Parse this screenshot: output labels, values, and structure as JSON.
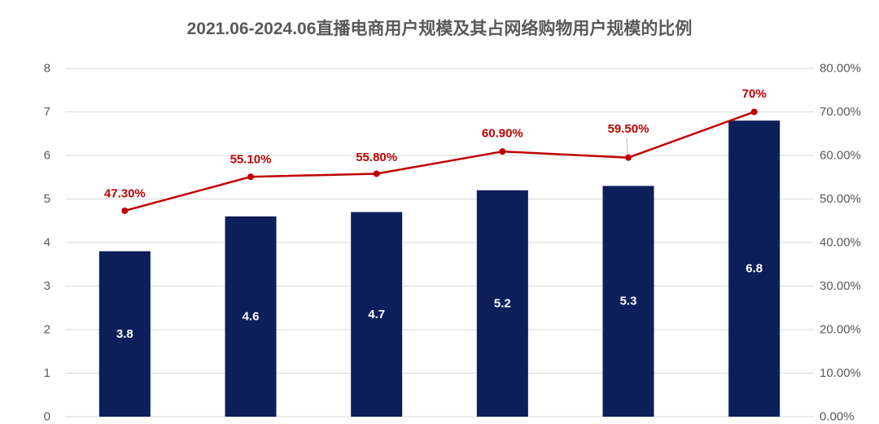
{
  "chart_data": {
    "type": "bar",
    "title": "2021.06-2024.06直播电商用户规模及其占网络购物用户规模的比例",
    "series": [
      {
        "type": "bar",
        "axis": "left",
        "values": [
          3.8,
          4.6,
          4.7,
          5.2,
          5.3,
          6.8
        ],
        "labels": [
          "3.8",
          "4.6",
          "4.7",
          "5.2",
          "5.3",
          "6.8"
        ]
      },
      {
        "type": "line",
        "axis": "right",
        "values": [
          47.3,
          55.1,
          55.8,
          60.9,
          59.5,
          70
        ],
        "labels": [
          "47.30%",
          "55.10%",
          "55.80%",
          "60.90%",
          "59.50%",
          "70%"
        ]
      }
    ],
    "y_left": {
      "min": 0,
      "max": 8,
      "ticks": [
        "0",
        "1",
        "2",
        "3",
        "4",
        "5",
        "6",
        "7",
        "8"
      ]
    },
    "y_right": {
      "min": 0,
      "max": 80,
      "ticks": [
        "0.00%",
        "10.00%",
        "20.00%",
        "30.00%",
        "40.00%",
        "50.00%",
        "60.00%",
        "70.00%",
        "80.00%"
      ]
    },
    "grid": true,
    "legend": "none",
    "colors": {
      "bar": "#0c1f5b",
      "line": "#c00000",
      "grid": "#d9d9d9",
      "leader": "#bfbfbf"
    }
  }
}
